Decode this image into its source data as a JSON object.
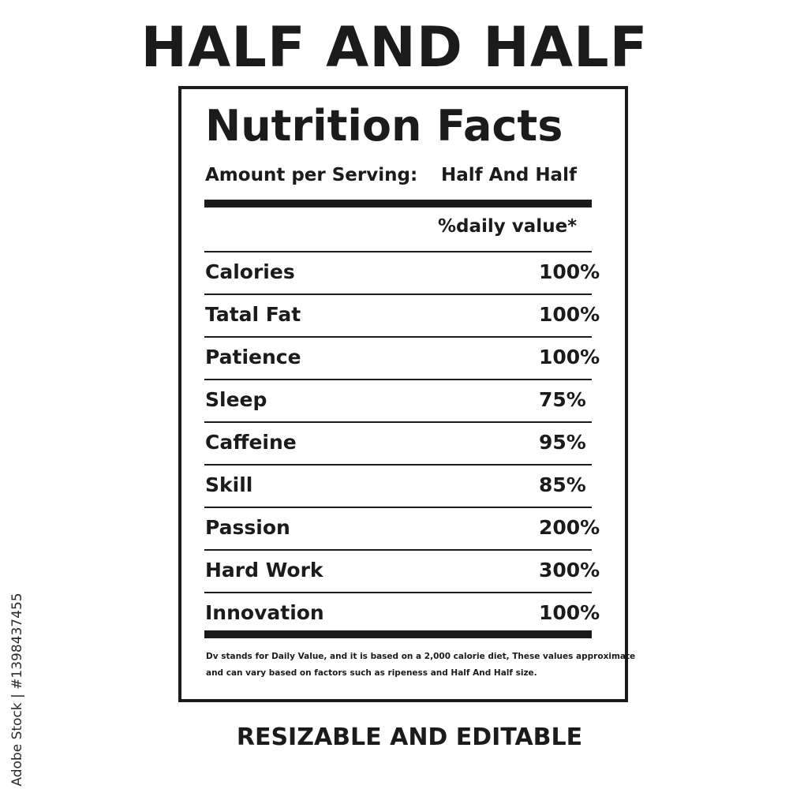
{
  "product_name": "HALF AND HALF",
  "label": {
    "title": "Nutrition Facts",
    "serving_label": "Amount per Serving:",
    "serving_value": "Half And Half",
    "daily_value_header": "%daily value*",
    "nutrients": [
      {
        "name": "Calories",
        "value": "100%"
      },
      {
        "name": "Tatal Fat",
        "value": "100%"
      },
      {
        "name": "Patience",
        "value": "100%"
      },
      {
        "name": "Sleep",
        "value": "75%"
      },
      {
        "name": "Caffeine",
        "value": "95%"
      },
      {
        "name": "Skill",
        "value": "85%"
      },
      {
        "name": "Passion",
        "value": "200%"
      },
      {
        "name": "Hard Work",
        "value": "300%"
      },
      {
        "name": "Innovation",
        "value": "100%"
      }
    ],
    "footnote_lines": [
      "Dv stands for Daily Value, and it is based on a 2,000 calorie diet, These values approximate",
      "and can vary based on factors such as ripeness and Half And Half size."
    ]
  },
  "caption": "RESIZABLE AND EDITABLE",
  "stock_id": "Adobe Stock | #1398437455"
}
